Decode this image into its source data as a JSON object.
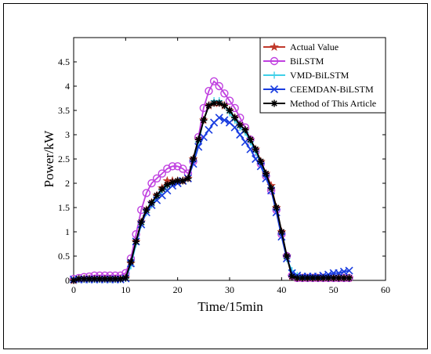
{
  "chart_data": {
    "type": "line",
    "xlabel": "Time/15min",
    "ylabel": "Power/kW",
    "xlim": [
      0,
      60
    ],
    "ylim": [
      0,
      5
    ],
    "xticks": [
      0,
      10,
      20,
      30,
      40,
      50,
      60
    ],
    "yticks": [
      0,
      0.5,
      1,
      1.5,
      2,
      2.5,
      3,
      3.5,
      4,
      4.5
    ],
    "legend_position": "top-right",
    "grid": false,
    "series": [
      {
        "name": "Actual Value",
        "color": "#c0392b",
        "marker": "star",
        "x": [
          0,
          1,
          2,
          3,
          4,
          5,
          6,
          7,
          8,
          9,
          10,
          11,
          12,
          13,
          14,
          15,
          16,
          17,
          18,
          19,
          20,
          21,
          22,
          23,
          24,
          25,
          26,
          27,
          28,
          29,
          30,
          31,
          32,
          33,
          34,
          35,
          36,
          37,
          38,
          39,
          40,
          41,
          42,
          43,
          44,
          45,
          46,
          47,
          48,
          49,
          50,
          51,
          52,
          53
        ],
        "y": [
          0,
          0.03,
          0.03,
          0.03,
          0.03,
          0.03,
          0.03,
          0.03,
          0.03,
          0.03,
          0.05,
          0.35,
          0.8,
          1.2,
          1.45,
          1.6,
          1.75,
          1.9,
          2.05,
          2.05,
          2.05,
          2.05,
          2.1,
          2.5,
          2.9,
          3.3,
          3.6,
          3.65,
          3.65,
          3.6,
          3.5,
          3.35,
          3.2,
          3.1,
          2.9,
          2.7,
          2.45,
          2.2,
          1.95,
          1.5,
          1.0,
          0.5,
          0.08,
          0.05,
          0.05,
          0.05,
          0.05,
          0.05,
          0.05,
          0.05,
          0.05,
          0.05,
          0.05,
          0.05
        ]
      },
      {
        "name": "BiLSTM",
        "color": "#c040e0",
        "marker": "circle",
        "x": [
          0,
          1,
          2,
          3,
          4,
          5,
          6,
          7,
          8,
          9,
          10,
          11,
          12,
          13,
          14,
          15,
          16,
          17,
          18,
          19,
          20,
          21,
          22,
          23,
          24,
          25,
          26,
          27,
          28,
          29,
          30,
          31,
          32,
          33,
          34,
          35,
          36,
          37,
          38,
          39,
          40,
          41,
          42,
          43,
          44,
          45,
          46,
          47,
          48,
          49,
          50,
          51,
          52,
          53
        ],
        "y": [
          0.03,
          0.05,
          0.07,
          0.08,
          0.1,
          0.1,
          0.1,
          0.1,
          0.1,
          0.1,
          0.15,
          0.45,
          0.95,
          1.45,
          1.8,
          2.0,
          2.1,
          2.2,
          2.3,
          2.35,
          2.35,
          2.3,
          2.2,
          2.45,
          2.95,
          3.55,
          3.9,
          4.1,
          4.0,
          3.85,
          3.7,
          3.55,
          3.35,
          3.15,
          2.9,
          2.65,
          2.4,
          2.15,
          1.85,
          1.45,
          0.95,
          0.5,
          0.1,
          0.05,
          0.05,
          0.05,
          0.05,
          0.05,
          0.05,
          0.05,
          0.05,
          0.05,
          0.05,
          0.05
        ]
      },
      {
        "name": "VMD-BiLSTM",
        "color": "#3fd0e8",
        "marker": "plus",
        "x": [
          0,
          1,
          2,
          3,
          4,
          5,
          6,
          7,
          8,
          9,
          10,
          11,
          12,
          13,
          14,
          15,
          16,
          17,
          18,
          19,
          20,
          21,
          22,
          23,
          24,
          25,
          26,
          27,
          28,
          29,
          30,
          31,
          32,
          33,
          34,
          35,
          36,
          37,
          38,
          39,
          40,
          41,
          42,
          43,
          44,
          45,
          46,
          47,
          48,
          49,
          50,
          51,
          52,
          53
        ],
        "y": [
          0,
          0.02,
          0.02,
          0.02,
          0.02,
          0.02,
          0.02,
          0.02,
          0.02,
          0.02,
          0.04,
          0.3,
          0.75,
          1.15,
          1.4,
          1.55,
          1.7,
          1.85,
          1.95,
          2.0,
          2.05,
          2.05,
          2.1,
          2.45,
          2.85,
          3.3,
          3.6,
          3.7,
          3.7,
          3.6,
          3.45,
          3.3,
          3.15,
          3.05,
          2.85,
          2.65,
          2.4,
          2.15,
          1.9,
          1.45,
          0.95,
          0.45,
          0.2,
          0.1,
          0.05,
          0.05,
          0.05,
          0.05,
          0.05,
          0.05,
          0.05,
          0.05,
          0.05,
          0.05
        ]
      },
      {
        "name": "CEEMDAN-BiLSTM",
        "color": "#1a3de0",
        "marker": "x",
        "x": [
          0,
          1,
          2,
          3,
          4,
          5,
          6,
          7,
          8,
          9,
          10,
          11,
          12,
          13,
          14,
          15,
          16,
          17,
          18,
          19,
          20,
          21,
          22,
          23,
          24,
          25,
          26,
          27,
          28,
          29,
          30,
          31,
          32,
          33,
          34,
          35,
          36,
          37,
          38,
          39,
          40,
          41,
          42,
          43,
          44,
          45,
          46,
          47,
          48,
          49,
          50,
          51,
          52,
          53
        ],
        "y": [
          0.02,
          0.02,
          0.02,
          0.02,
          0.02,
          0.02,
          0.02,
          0.02,
          0.02,
          0.02,
          0.04,
          0.35,
          0.8,
          1.15,
          1.4,
          1.55,
          1.65,
          1.75,
          1.85,
          1.95,
          2.0,
          2.05,
          2.1,
          2.4,
          2.75,
          2.95,
          3.1,
          3.25,
          3.35,
          3.3,
          3.25,
          3.15,
          3.0,
          2.85,
          2.7,
          2.5,
          2.35,
          2.1,
          1.85,
          1.4,
          0.9,
          0.45,
          0.15,
          0.1,
          0.08,
          0.08,
          0.08,
          0.08,
          0.1,
          0.12,
          0.15,
          0.15,
          0.18,
          0.2
        ]
      },
      {
        "name": "Method of This Article",
        "color": "#000000",
        "marker": "asterisk",
        "x": [
          0,
          1,
          2,
          3,
          4,
          5,
          6,
          7,
          8,
          9,
          10,
          11,
          12,
          13,
          14,
          15,
          16,
          17,
          18,
          19,
          20,
          21,
          22,
          23,
          24,
          25,
          26,
          27,
          28,
          29,
          30,
          31,
          32,
          33,
          34,
          35,
          36,
          37,
          38,
          39,
          40,
          41,
          42,
          43,
          44,
          45,
          46,
          47,
          48,
          49,
          50,
          51,
          52,
          53
        ],
        "y": [
          0,
          0.03,
          0.03,
          0.03,
          0.03,
          0.03,
          0.03,
          0.03,
          0.03,
          0.03,
          0.05,
          0.38,
          0.8,
          1.2,
          1.45,
          1.6,
          1.75,
          1.88,
          1.97,
          2.02,
          2.05,
          2.05,
          2.1,
          2.5,
          2.9,
          3.3,
          3.6,
          3.65,
          3.65,
          3.6,
          3.5,
          3.35,
          3.2,
          3.1,
          2.9,
          2.7,
          2.45,
          2.2,
          1.9,
          1.5,
          1.0,
          0.5,
          0.08,
          0.05,
          0.05,
          0.05,
          0.05,
          0.05,
          0.05,
          0.05,
          0.05,
          0.05,
          0.05,
          0.05
        ]
      }
    ]
  }
}
